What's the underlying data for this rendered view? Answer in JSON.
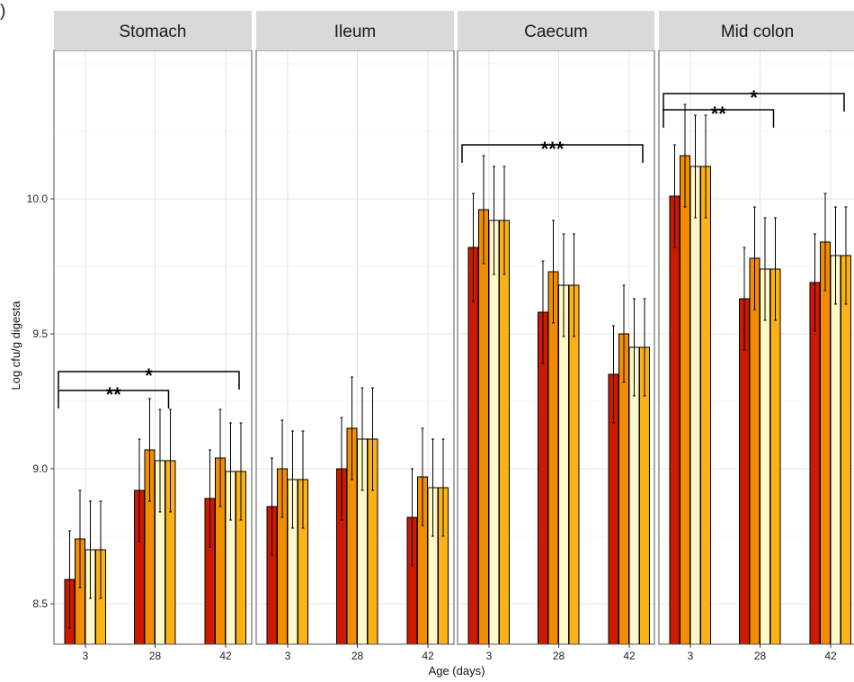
{
  "panel_tag": ")",
  "chart_data": {
    "type": "bar",
    "xlabel": "Age (days)",
    "ylabel": "Log cfu/g digesta",
    "ylim": [
      8.35,
      10.55
    ],
    "yticks": [
      8.5,
      9.0,
      9.5,
      10.0
    ],
    "categories": [
      "3",
      "28",
      "42"
    ],
    "grid": true,
    "legend": "none",
    "series_colors": [
      "#cc1a00",
      "#f28c00",
      "#fff8c8",
      "#fbb217"
    ],
    "facets": [
      {
        "label": "Stomach",
        "series": [
          {
            "values": [
              8.59,
              8.92,
              8.89
            ],
            "err": [
              0.18,
              0.19,
              0.18
            ]
          },
          {
            "values": [
              8.74,
              9.07,
              9.04
            ],
            "err": [
              0.18,
              0.19,
              0.18
            ]
          },
          {
            "values": [
              8.7,
              9.03,
              8.99
            ],
            "err": [
              0.18,
              0.19,
              0.18
            ]
          },
          {
            "values": [
              8.7,
              9.03,
              8.99
            ],
            "err": [
              0.18,
              0.19,
              0.18
            ]
          }
        ],
        "significance": [
          {
            "label": "**",
            "from": "3",
            "to": "28",
            "level": 9.29
          },
          {
            "label": "*",
            "from": "3",
            "to": "42",
            "level": 9.36
          }
        ]
      },
      {
        "label": "Ileum",
        "series": [
          {
            "values": [
              8.86,
              9.0,
              8.82
            ],
            "err": [
              0.18,
              0.19,
              0.18
            ]
          },
          {
            "values": [
              9.0,
              9.15,
              8.97
            ],
            "err": [
              0.18,
              0.19,
              0.18
            ]
          },
          {
            "values": [
              8.96,
              9.11,
              8.93
            ],
            "err": [
              0.18,
              0.19,
              0.18
            ]
          },
          {
            "values": [
              8.96,
              9.11,
              8.93
            ],
            "err": [
              0.18,
              0.19,
              0.18
            ]
          }
        ],
        "significance": []
      },
      {
        "label": "Caecum",
        "series": [
          {
            "values": [
              9.82,
              9.58,
              9.35
            ],
            "err": [
              0.2,
              0.19,
              0.18
            ]
          },
          {
            "values": [
              9.96,
              9.73,
              9.5
            ],
            "err": [
              0.2,
              0.19,
              0.18
            ]
          },
          {
            "values": [
              9.92,
              9.68,
              9.45
            ],
            "err": [
              0.2,
              0.19,
              0.18
            ]
          },
          {
            "values": [
              9.92,
              9.68,
              9.45
            ],
            "err": [
              0.2,
              0.19,
              0.18
            ]
          }
        ],
        "significance": [
          {
            "label": "***",
            "from": "3",
            "to": "42",
            "level": 10.2
          }
        ]
      },
      {
        "label": "Mid colon",
        "series": [
          {
            "values": [
              10.01,
              9.63,
              9.69
            ],
            "err": [
              0.19,
              0.19,
              0.18
            ]
          },
          {
            "values": [
              10.16,
              9.78,
              9.84
            ],
            "err": [
              0.19,
              0.19,
              0.18
            ]
          },
          {
            "values": [
              10.12,
              9.74,
              9.79
            ],
            "err": [
              0.19,
              0.19,
              0.18
            ]
          },
          {
            "values": [
              10.12,
              9.74,
              9.79
            ],
            "err": [
              0.19,
              0.19,
              0.18
            ]
          }
        ],
        "significance": [
          {
            "label": "**",
            "from": "3",
            "to": "28",
            "level": 10.33
          },
          {
            "label": "*",
            "from": "3",
            "to": "42",
            "level": 10.39
          }
        ]
      }
    ]
  }
}
